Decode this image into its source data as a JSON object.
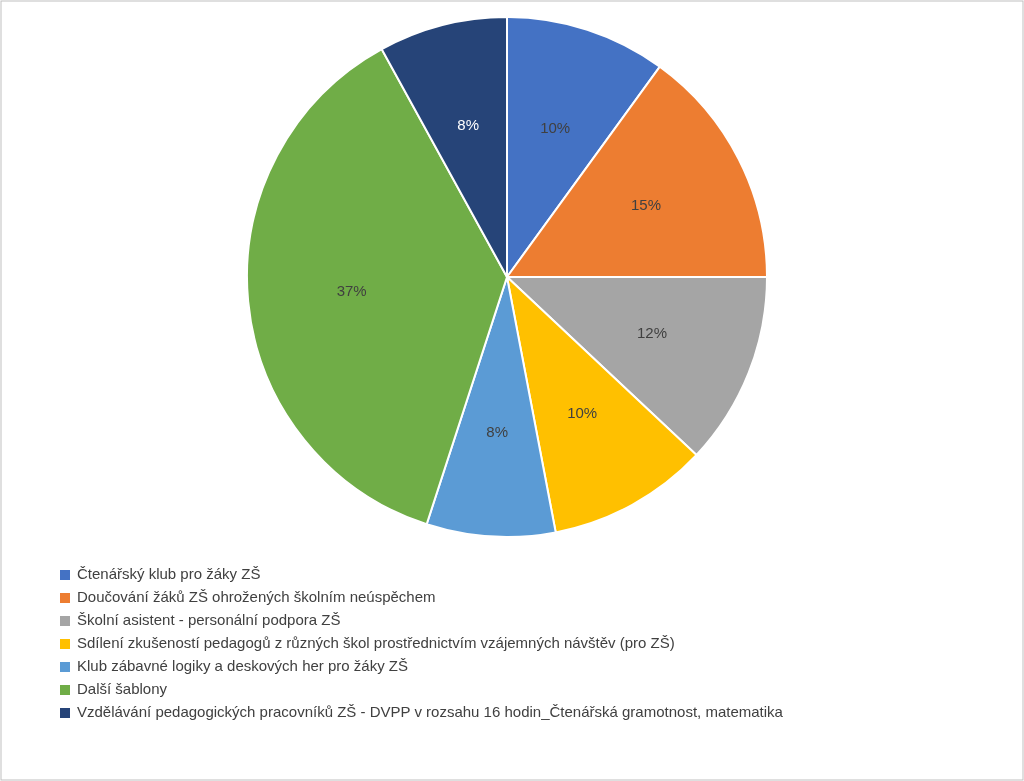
{
  "chart_data": {
    "type": "pie",
    "categories": [
      "Čtenářský klub pro žáky ZŠ",
      "Doučování žáků ZŠ ohrožených školním neúspěchem",
      "Školní asistent - personální podpora ZŠ",
      "Sdílení zkušeností pedagogů z různých škol prostřednictvím vzájemných návštěv (pro ZŠ)",
      "Klub zábavné logiky a deskových her pro žáky ZŠ",
      "Další šablony",
      "Vzdělávání pedagogických pracovníků ZŠ - DVPP v rozsahu 16 hodin_Čtenářská gramotnost, matematika"
    ],
    "values": [
      10,
      15,
      12,
      10,
      8,
      37,
      8
    ],
    "colors": [
      "#4472c4",
      "#ed7d31",
      "#a5a5a5",
      "#ffc000",
      "#5b9bd5",
      "#70ad47",
      "#264478"
    ],
    "value_labels": [
      "10%",
      "15%",
      "12%",
      "10%",
      "8%",
      "37%",
      "8%"
    ],
    "legend": "bottom left"
  }
}
